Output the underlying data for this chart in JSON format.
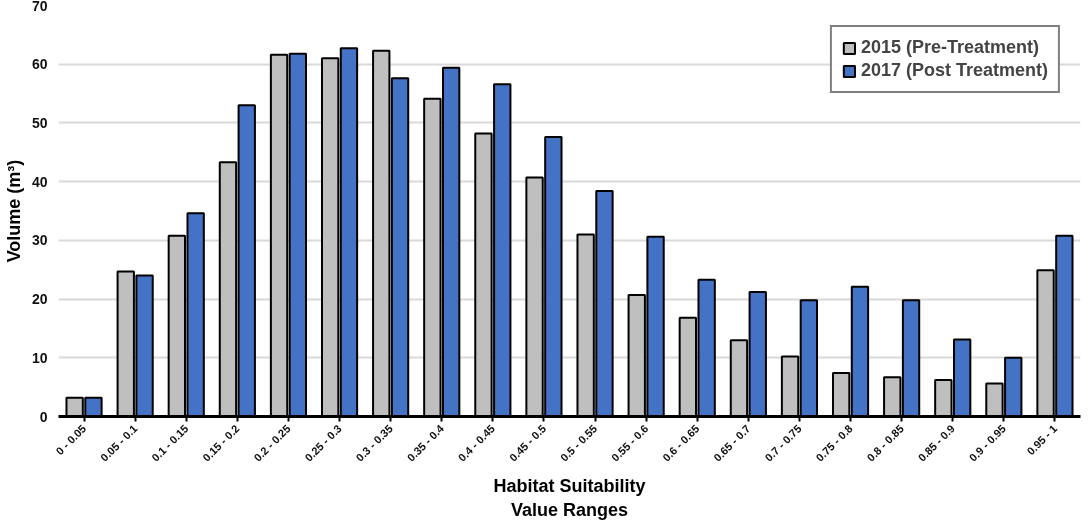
{
  "chart_data": {
    "type": "bar",
    "xlabel": "Habitat Suitability\nValue Ranges",
    "ylabel": "Volume (m³)",
    "categories": [
      "0 - 0.05",
      "0.05 - 0.1",
      "0.1 - 0.15",
      "0.15 - 0.2",
      "0.2 - 0.25",
      "0.25 - 0.3",
      "0.3 - 0.35",
      "0.35 - 0.4",
      "0.4 - 0.45",
      "0.45 - 0.5",
      "0.5 - 0.55",
      "0.55 - 0.6",
      "0.6 - 0.65",
      "0.65 - 0.7",
      "0.7 - 0.75",
      "0.75 - 0.8",
      "0.8 - 0.85",
      "0.85 - 0.9",
      "0.9 - 0.95",
      "0.95 - 1"
    ],
    "series": [
      {
        "name": "2015 (Pre-Treatment)",
        "color": "#bfbfbf",
        "values": [
          3.2,
          24.7,
          30.8,
          43.3,
          61.6,
          61.0,
          62.3,
          54.1,
          48.2,
          40.7,
          31.0,
          20.7,
          16.8,
          13.0,
          10.2,
          7.4,
          6.7,
          6.2,
          5.6,
          24.9
        ]
      },
      {
        "name": "2017 (Post Treatment)",
        "color": "#4472c4",
        "values": [
          3.2,
          24.0,
          34.6,
          53.0,
          61.8,
          62.7,
          57.6,
          59.4,
          56.6,
          47.6,
          38.4,
          30.6,
          23.3,
          21.2,
          19.8,
          22.1,
          19.8,
          13.1,
          10.0,
          30.8
        ]
      }
    ],
    "ylim": [
      0,
      70
    ],
    "yticks": [
      0,
      10,
      20,
      30,
      40,
      50,
      60,
      70
    ],
    "grid": "y",
    "legend": "top right"
  }
}
